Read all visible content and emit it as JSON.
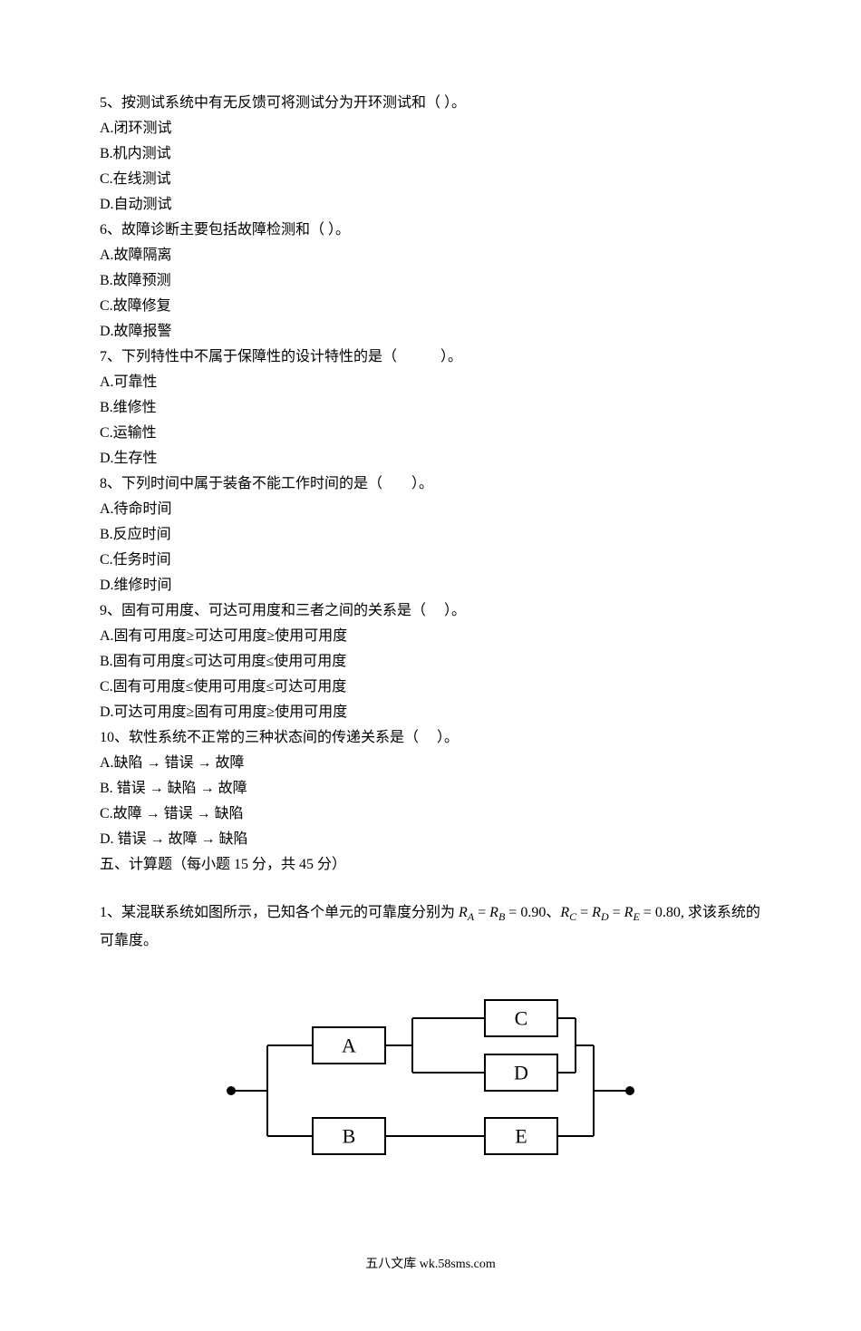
{
  "questions": [
    {
      "id": "q5",
      "stem": "5、按测试系统中有无反馈可将测试分为开环测试和（ ）。",
      "options": {
        "a": "A.闭环测试",
        "b": "B.机内测试",
        "c": "C.在线测试",
        "d": "D.自动测试"
      }
    },
    {
      "id": "q6",
      "stem": "6、故障诊断主要包括故障检测和（ ）。",
      "options": {
        "a": "A.故障隔离",
        "b": "B.故障预测",
        "c": "C.故障修复",
        "d": "D.故障报警"
      }
    },
    {
      "id": "q7",
      "stem": "7、下列特性中不属于保障性的设计特性的是（　　　）。",
      "options": {
        "a": "A.可靠性",
        "b": "B.维修性",
        "c": "C.运输性",
        "d": "D.生存性"
      }
    },
    {
      "id": "q8",
      "stem": "8、下列时间中属于装备不能工作时间的是（　　）。",
      "options": {
        "a": "A.待命时间",
        "b": "B.反应时间",
        "c": "C.任务时间",
        "d": "D.维修时间"
      }
    },
    {
      "id": "q9",
      "stem": "9、固有可用度、可达可用度和三者之间的关系是（　 ）。",
      "options": {
        "a": "A.固有可用度≥可达可用度≥使用可用度",
        "b": "B.固有可用度≤可达可用度≤使用可用度",
        "c": "C.固有可用度≤使用可用度≤可达可用度",
        "d": "D.可达可用度≥固有可用度≥使用可用度"
      }
    },
    {
      "id": "q10",
      "stem": "10、软性系统不正常的三种状态间的传递关系是（　 ）。",
      "options": {
        "a": "A.缺陷 → 错误 → 故障",
        "b": "B. 错误 → 缺陷 → 故障",
        "c": "C.故障 → 错误 → 缺陷",
        "d": "D. 错误 → 故障 → 缺陷"
      }
    }
  ],
  "section5_heading": "五、计算题（每小题 15 分，共 45 分）",
  "calc": {
    "prefix": "1、某混联系统如图所示，已知各个单元的可靠度分别为 ",
    "r_var": "R",
    "sub_a": "A",
    "sub_b": "B",
    "sub_c": "C",
    "sub_d": "D",
    "sub_e": "E",
    "eq": " = ",
    "sep": "、",
    "val_ab": "0.90",
    "val_cde": "0.80",
    "tail": ", 求该系统的可靠度。"
  },
  "diagram": {
    "labels": {
      "A": "A",
      "B": "B",
      "C": "C",
      "D": "D",
      "E": "E"
    },
    "box_stroke": "#000000",
    "line_stroke": "#000000",
    "stroke_width": 2,
    "node_fill": "#000000",
    "box_fill": "#ffffff",
    "font_family": "Times New Roman, serif",
    "font_size": 22
  },
  "footer": "五八文库 wk.58sms.com"
}
